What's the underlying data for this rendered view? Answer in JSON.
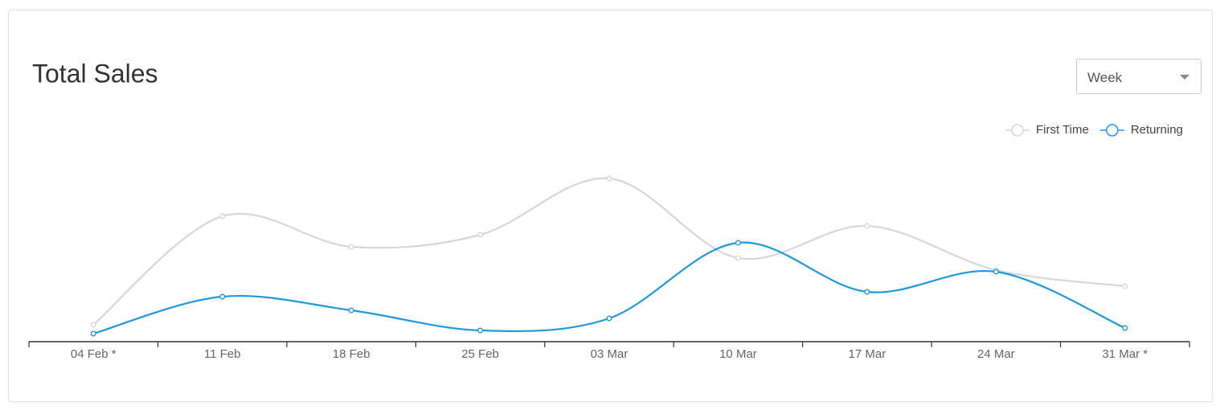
{
  "dropdown": {
    "selected": "Week"
  },
  "chart_data": {
    "type": "line",
    "title": "Total Sales",
    "categories": [
      "04 Feb *",
      "11 Feb",
      "18 Feb",
      "25 Feb",
      "03 Mar",
      "10 Mar",
      "17 Mar",
      "24 Mar",
      "31 Mar *"
    ],
    "series": [
      {
        "name": "First Time",
        "color": "#d6d6dd",
        "values": [
          21,
          156,
          118,
          133,
          203,
          104,
          144,
          89,
          69
        ]
      },
      {
        "name": "Returning",
        "color": "#1f98e0",
        "values": [
          10,
          56,
          39,
          14,
          29,
          123,
          62,
          87,
          17
        ]
      }
    ],
    "ylim": [
      0,
      220
    ]
  }
}
